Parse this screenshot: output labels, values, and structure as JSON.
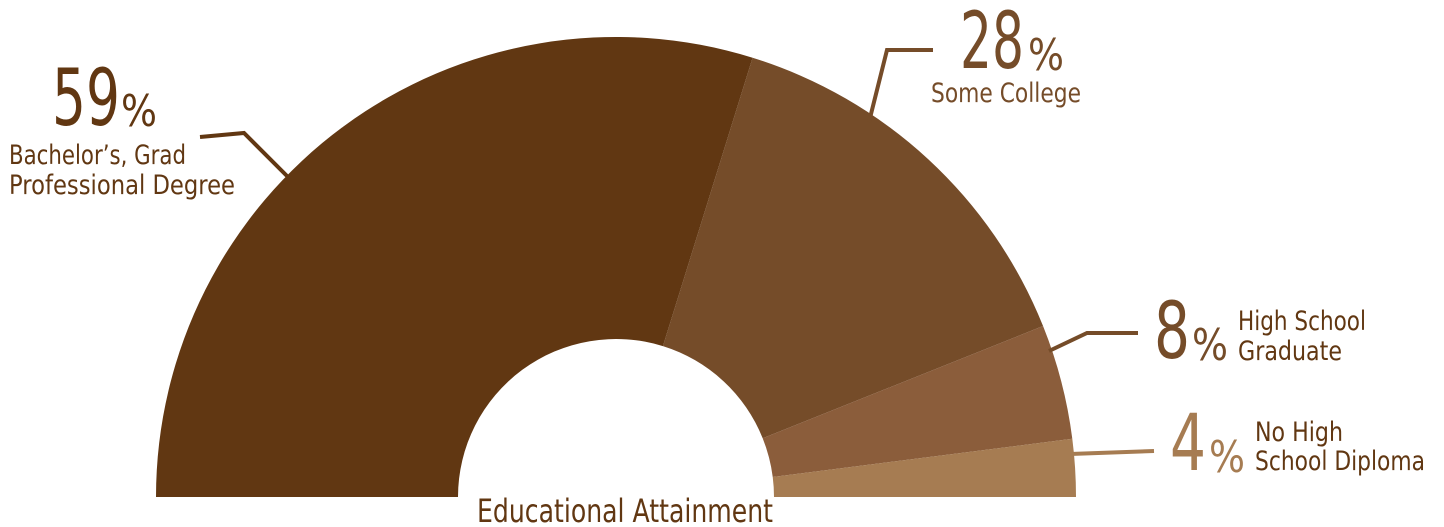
{
  "chart_data": {
    "type": "pie",
    "variant": "half-donut",
    "title": "Educational Attainment",
    "percent_symbol": "%",
    "slices": [
      {
        "label": "Bachelor’s, Grad",
        "label2": "Professional Degree",
        "value": 59,
        "color": "#613712"
      },
      {
        "label": "Some College",
        "label2": "",
        "value": 28,
        "color": "#754c29"
      },
      {
        "label": "High School",
        "label2": "Graduate",
        "value": 8,
        "color": "#8b5d3b"
      },
      {
        "label": "No High",
        "label2": "School Diploma",
        "value": 4,
        "color": "#a67c52"
      }
    ],
    "label_colors": {
      "dark": "#613712",
      "medium": "#754c29",
      "light": "#a67c52"
    }
  }
}
